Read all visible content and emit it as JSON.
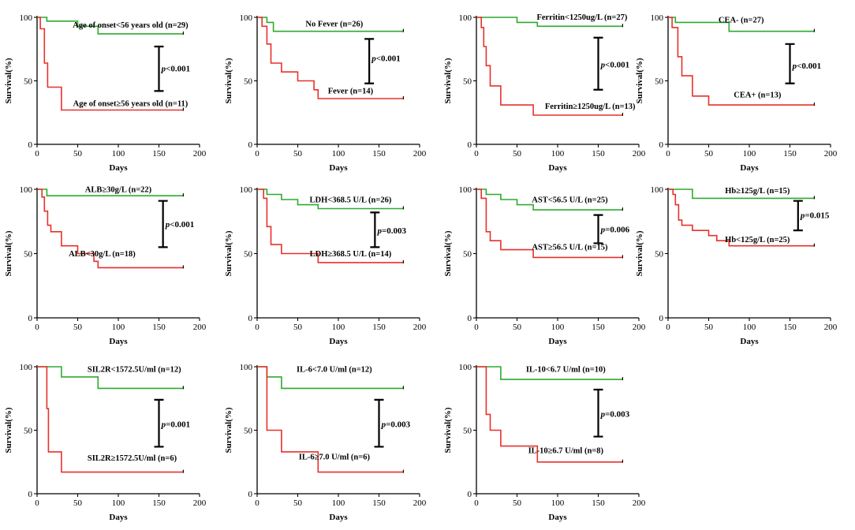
{
  "figure": {
    "xlabel": "Days",
    "ylabel": "Survival(%)",
    "xticks": [
      0,
      50,
      100,
      150,
      200
    ],
    "yticks": [
      0,
      50,
      100
    ],
    "xlim": [
      0,
      200
    ],
    "ylim": [
      0,
      100
    ],
    "colors": {
      "group_a": "#2eaa2e",
      "group_b": "#e8302a",
      "axis": "#000000"
    }
  },
  "chart_data": [
    {
      "type": "line",
      "title": "Age of onset",
      "series": [
        {
          "name": "Age of onset<56 years old (n=29)",
          "color": "#2eaa2e",
          "x": [
            0,
            12,
            12,
            50,
            50,
            75,
            75,
            180
          ],
          "y": [
            100,
            100,
            97,
            97,
            93,
            93,
            87,
            87
          ]
        },
        {
          "name": "Age of onset≥56 years old (n=11)",
          "color": "#e8302a",
          "x": [
            0,
            4,
            4,
            9,
            9,
            13,
            13,
            30,
            30,
            180
          ],
          "y": [
            100,
            100,
            91,
            91,
            64,
            64,
            45,
            45,
            27,
            27
          ]
        }
      ],
      "p_label": "p",
      "p_value": "<0.001"
    },
    {
      "type": "line",
      "title": "Fever",
      "series": [
        {
          "name": "No Fever (n=26)",
          "color": "#2eaa2e",
          "x": [
            0,
            12,
            12,
            20,
            20,
            180
          ],
          "y": [
            100,
            100,
            96,
            96,
            89,
            89
          ]
        },
        {
          "name": "Fever (n=14)",
          "color": "#e8302a",
          "x": [
            0,
            6,
            6,
            12,
            12,
            17,
            17,
            30,
            30,
            50,
            50,
            70,
            70,
            75,
            75,
            180
          ],
          "y": [
            100,
            100,
            93,
            93,
            79,
            79,
            64,
            64,
            57,
            57,
            50,
            50,
            43,
            43,
            36,
            36
          ]
        }
      ],
      "p_label": "p",
      "p_value": "<0.001"
    },
    {
      "type": "line",
      "title": "Ferritin",
      "series": [
        {
          "name": "Ferritin<1250ug/L (n=27)",
          "color": "#2eaa2e",
          "x": [
            0,
            50,
            50,
            75,
            75,
            180
          ],
          "y": [
            100,
            100,
            96,
            96,
            93,
            93
          ]
        },
        {
          "name": "Ferritin≥1250ug/L (n=13)",
          "color": "#e8302a",
          "x": [
            0,
            6,
            6,
            9,
            9,
            12,
            12,
            17,
            17,
            30,
            30,
            70,
            70,
            180
          ],
          "y": [
            100,
            100,
            92,
            92,
            77,
            77,
            62,
            62,
            46,
            46,
            31,
            31,
            23,
            23
          ]
        }
      ],
      "p_label": "p",
      "p_value": "<0.001"
    },
    {
      "type": "line",
      "title": "CEA",
      "series": [
        {
          "name": "CEA- (n=27)",
          "color": "#2eaa2e",
          "x": [
            0,
            9,
            9,
            75,
            75,
            180
          ],
          "y": [
            100,
            100,
            96,
            96,
            89,
            89
          ]
        },
        {
          "name": "CEA+ (n=13)",
          "color": "#e8302a",
          "x": [
            0,
            5,
            5,
            12,
            12,
            17,
            17,
            30,
            30,
            50,
            50,
            180
          ],
          "y": [
            100,
            100,
            92,
            92,
            69,
            69,
            54,
            54,
            38,
            38,
            31,
            31
          ]
        }
      ],
      "p_label": "p",
      "p_value": "<0.001"
    },
    {
      "type": "line",
      "title": "ALB",
      "series": [
        {
          "name": "ALB≥30g/L (n=22)",
          "color": "#2eaa2e",
          "x": [
            0,
            12,
            12,
            180
          ],
          "y": [
            100,
            100,
            95,
            95
          ]
        },
        {
          "name": "ALB<30g/L (n=18)",
          "color": "#e8302a",
          "x": [
            0,
            6,
            6,
            9,
            9,
            13,
            13,
            17,
            17,
            30,
            30,
            50,
            50,
            70,
            70,
            75,
            75,
            180
          ],
          "y": [
            100,
            100,
            94,
            94,
            83,
            83,
            72,
            72,
            67,
            67,
            56,
            56,
            50,
            50,
            44,
            44,
            39,
            39
          ]
        }
      ],
      "p_label": "p",
      "p_value": "<0.001"
    },
    {
      "type": "line",
      "title": "LDH",
      "series": [
        {
          "name": "LDH<368.5 U/L (n=26)",
          "color": "#2eaa2e",
          "x": [
            0,
            12,
            12,
            30,
            30,
            50,
            50,
            75,
            75,
            180
          ],
          "y": [
            100,
            100,
            96,
            96,
            92,
            92,
            88,
            88,
            85,
            85
          ]
        },
        {
          "name": "LDH≥368.5 U/L (n=14)",
          "color": "#e8302a",
          "x": [
            0,
            8,
            8,
            12,
            12,
            17,
            17,
            30,
            30,
            75,
            75,
            180
          ],
          "y": [
            100,
            100,
            93,
            93,
            71,
            71,
            57,
            57,
            50,
            50,
            43,
            43
          ]
        }
      ],
      "p_label": "p",
      "p_value": "=0.003"
    },
    {
      "type": "line",
      "title": "AST",
      "series": [
        {
          "name": "AST<56.5 U/L (n=25)",
          "color": "#2eaa2e",
          "x": [
            0,
            12,
            12,
            30,
            30,
            50,
            50,
            70,
            70,
            180
          ],
          "y": [
            100,
            100,
            96,
            96,
            92,
            92,
            88,
            88,
            84,
            84
          ]
        },
        {
          "name": "AST≥56.5 U/L (n=15)",
          "color": "#e8302a",
          "x": [
            0,
            6,
            6,
            12,
            12,
            17,
            17,
            30,
            30,
            70,
            70,
            180
          ],
          "y": [
            100,
            100,
            93,
            93,
            67,
            67,
            60,
            60,
            53,
            53,
            47,
            47
          ]
        }
      ],
      "p_label": "p",
      "p_value": "=0.006"
    },
    {
      "type": "line",
      "title": "Hb",
      "series": [
        {
          "name": "Hb≥125g/L (n=15)",
          "color": "#2eaa2e",
          "x": [
            0,
            30,
            30,
            180
          ],
          "y": [
            100,
            100,
            93,
            93
          ]
        },
        {
          "name": "Hb<125g/L (n=25)",
          "color": "#e8302a",
          "x": [
            0,
            6,
            6,
            9,
            9,
            13,
            13,
            17,
            17,
            30,
            30,
            50,
            50,
            60,
            60,
            75,
            75,
            180
          ],
          "y": [
            100,
            100,
            96,
            96,
            88,
            88,
            76,
            76,
            72,
            72,
            68,
            68,
            64,
            64,
            60,
            60,
            56,
            56
          ]
        }
      ],
      "p_label": "p",
      "p_value": "=0.015"
    },
    {
      "type": "line",
      "title": "SIL2R",
      "series": [
        {
          "name": "SIL2R<1572.5U/ml (n=12)",
          "color": "#2eaa2e",
          "x": [
            0,
            30,
            30,
            75,
            75,
            180
          ],
          "y": [
            100,
            100,
            92,
            92,
            83,
            83
          ]
        },
        {
          "name": "SIL2R≥1572.5U/ml (n=6)",
          "color": "#e8302a",
          "x": [
            0,
            12,
            12,
            14,
            14,
            30,
            30,
            180
          ],
          "y": [
            100,
            100,
            67,
            67,
            33,
            33,
            17,
            17
          ]
        }
      ],
      "p_label": "p",
      "p_value": "=0.001"
    },
    {
      "type": "line",
      "title": "IL-6",
      "series": [
        {
          "name": "IL-6<7.0 U/ml (n=12)",
          "color": "#2eaa2e",
          "x": [
            0,
            12,
            12,
            30,
            30,
            180
          ],
          "y": [
            100,
            100,
            92,
            92,
            83,
            83
          ]
        },
        {
          "name": "IL-6≥7.0 U/ml (n=6)",
          "color": "#e8302a",
          "x": [
            0,
            12,
            12,
            30,
            30,
            75,
            75,
            180
          ],
          "y": [
            100,
            100,
            50,
            50,
            33,
            33,
            17,
            17
          ]
        }
      ],
      "p_label": "p",
      "p_value": "=0.003"
    },
    {
      "type": "line",
      "title": "IL-10",
      "series": [
        {
          "name": "IL-10<6.7 U/ml (n=10)",
          "color": "#2eaa2e",
          "x": [
            0,
            30,
            30,
            180
          ],
          "y": [
            100,
            100,
            90,
            90
          ]
        },
        {
          "name": "IL-10≥6.7 U/ml (n=8)",
          "color": "#e8302a",
          "x": [
            0,
            12,
            12,
            17,
            17,
            30,
            30,
            75,
            75,
            180
          ],
          "y": [
            100,
            100,
            62.5,
            62.5,
            50,
            50,
            37.5,
            37.5,
            25,
            25
          ]
        }
      ],
      "p_label": "p",
      "p_value": "=0.003"
    }
  ]
}
